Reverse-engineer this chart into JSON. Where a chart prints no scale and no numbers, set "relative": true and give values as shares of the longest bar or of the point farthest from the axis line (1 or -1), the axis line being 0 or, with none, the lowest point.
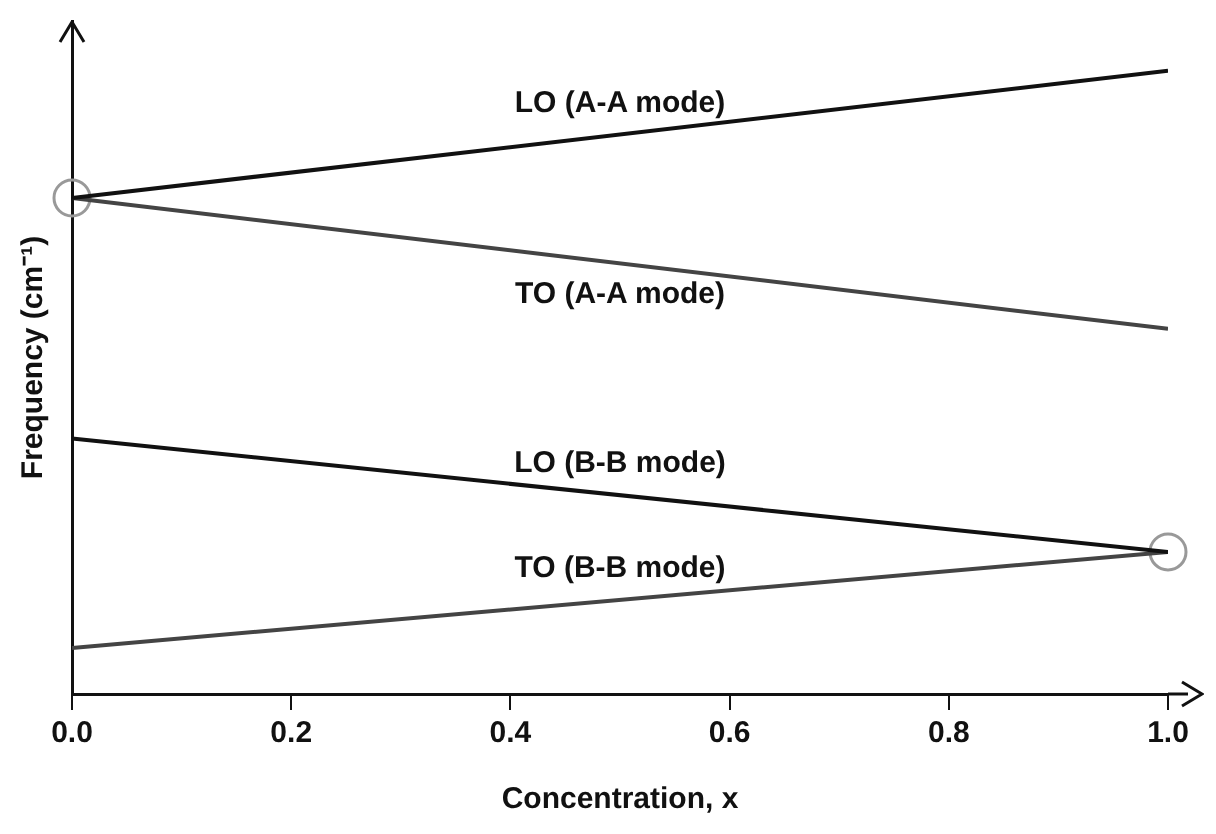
{
  "chart_data": {
    "type": "line",
    "relative": true,
    "xlabel": "Concentration, x",
    "ylabel": "Frequency (cm⁻¹)",
    "x": [
      0,
      1
    ],
    "xlim": [
      0,
      1
    ],
    "xticks": [
      {
        "value": 0,
        "label": "0.0"
      },
      {
        "value": 0.2,
        "label": "0.2"
      },
      {
        "value": 0.4,
        "label": "0.4"
      },
      {
        "value": 0.6,
        "label": "0.6"
      },
      {
        "value": 0.8,
        "label": "0.8"
      },
      {
        "value": 1,
        "label": "1.0"
      }
    ],
    "series": [
      {
        "name": "LO (A-A mode)",
        "color": "#111111",
        "values": [
          0.796,
          1.0
        ]
      },
      {
        "name": "TO (A-A mode)",
        "color": "#444444",
        "values": [
          0.796,
          0.586
        ]
      },
      {
        "name": "LO (B-B mode)",
        "color": "#111111",
        "values": [
          0.41,
          0.228
        ]
      },
      {
        "name": "TO (B-B mode)",
        "color": "#444444",
        "values": [
          0.074,
          0.228
        ]
      },
      {
        "type": "scatter",
        "marker": "circle",
        "color": "#999999",
        "values": [
          0.796,
          0.228
        ]
      }
    ],
    "grid": false,
    "legend": false,
    "line_style": "solid"
  }
}
